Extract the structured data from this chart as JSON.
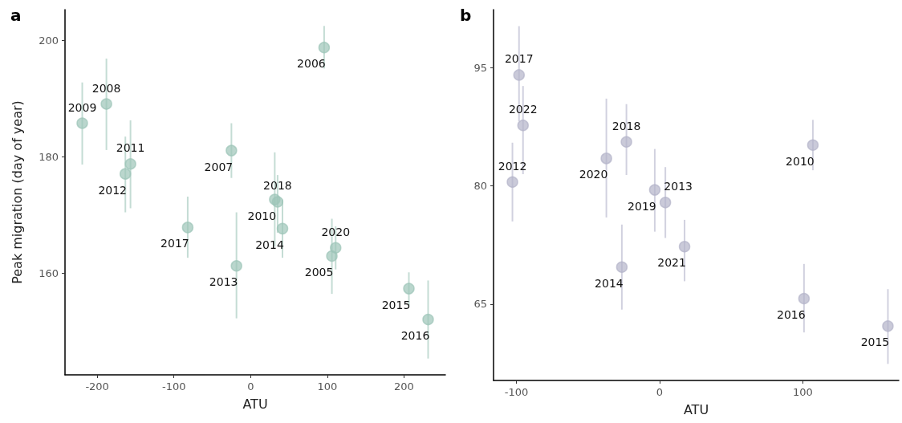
{
  "chart_data": [
    {
      "type": "scatter",
      "title": "a",
      "xlabel": "ATU",
      "ylabel": "Peak migration (day of year)",
      "xlim": [
        -242,
        254
      ],
      "ylim": [
        142.6,
        205.3
      ],
      "xticks": [
        -200,
        -100,
        0,
        100,
        200
      ],
      "yticks": [
        160,
        180,
        200
      ],
      "grid": false,
      "marker": "circle",
      "series": [
        {
          "color": "#9cc5b8",
          "x": [
            -219.5,
            -188,
            -156.6,
            -163.3,
            -82,
            -25,
            -18.4,
            31.5,
            35.2,
            41.6,
            95.9,
            106,
            110.9,
            206.4,
            231.5
          ],
          "values": [
            185.8,
            189.1,
            178.8,
            177.1,
            167.9,
            181.1,
            161.3,
            172.7,
            172.3,
            167.7,
            198.8,
            163.0,
            164.4,
            157.4,
            152.1
          ],
          "errors": [
            [
              178.7,
              192.8
            ],
            [
              181.2,
              196.9
            ],
            [
              171.2,
              186.3
            ],
            [
              170.5,
              183.5
            ],
            [
              162.7,
              173.2
            ],
            [
              176.4,
              185.8
            ],
            [
              152.3,
              170.5
            ],
            [
              164.6,
              180.8
            ],
            [
              167.0,
              176.9
            ],
            [
              162.7,
              172.7
            ],
            [
              195.2,
              202.5
            ],
            [
              156.5,
              169.4
            ],
            [
              160.7,
              168.1
            ],
            [
              154.5,
              160.2
            ],
            [
              145.4,
              158.8
            ]
          ]
        }
      ],
      "annotations": [
        {
          "text": "2009",
          "x": -219.5,
          "y": 185.8
        },
        {
          "text": "2008",
          "x": -188,
          "y": 189.1
        },
        {
          "text": "2011",
          "x": -156.6,
          "y": 178.8
        },
        {
          "text": "2012",
          "x": -163.3,
          "y": 177.1
        },
        {
          "text": "2017",
          "x": -82,
          "y": 167.9
        },
        {
          "text": "2007",
          "x": -25,
          "y": 181.1
        },
        {
          "text": "2013",
          "x": -18.4,
          "y": 161.3
        },
        {
          "text": "2010",
          "x": 31.5,
          "y": 172.7
        },
        {
          "text": "2018",
          "x": 35.2,
          "y": 172.3
        },
        {
          "text": "2014",
          "x": 41.6,
          "y": 167.7
        },
        {
          "text": "2006",
          "x": 95.9,
          "y": 198.8
        },
        {
          "text": "2005",
          "x": 106,
          "y": 163.0
        },
        {
          "text": "2020",
          "x": 110.9,
          "y": 164.4
        },
        {
          "text": "2015",
          "x": 206.4,
          "y": 157.4
        },
        {
          "text": "2016",
          "x": 231.5,
          "y": 152.1
        }
      ]
    },
    {
      "type": "scatter",
      "title": "b",
      "xlabel": "ATU",
      "xlim": [
        -116,
        167
      ],
      "ylim": [
        55.3,
        102.4
      ],
      "xticks": [
        -100,
        0,
        100
      ],
      "yticks": [
        65,
        80,
        95
      ],
      "grid": false,
      "marker": "circle",
      "series": [
        {
          "color": "#b3b3c9",
          "x": [
            -98.2,
            -95.4,
            -102.8,
            -37.2,
            -23.2,
            -3.4,
            4,
            17.4,
            -26.4,
            107,
            100.8,
            159.4
          ],
          "values": [
            94.1,
            87.7,
            80.5,
            83.5,
            85.6,
            79.5,
            77.9,
            72.3,
            69.7,
            85.2,
            65.7,
            62.2
          ],
          "errors": [
            [
              88.2,
              100.3
            ],
            [
              81.5,
              92.7
            ],
            [
              75.5,
              85.5
            ],
            [
              76.0,
              91.1
            ],
            [
              81.4,
              90.4
            ],
            [
              74.2,
              84.7
            ],
            [
              73.4,
              82.4
            ],
            [
              67.9,
              75.7
            ],
            [
              64.3,
              75.1
            ],
            [
              82.0,
              88.4
            ],
            [
              61.4,
              70.1
            ],
            [
              57.4,
              66.9
            ]
          ]
        }
      ],
      "annotations": [
        {
          "text": "2017",
          "x": -98.2,
          "y": 94.1
        },
        {
          "text": "2022",
          "x": -95.4,
          "y": 87.7
        },
        {
          "text": "2012",
          "x": -102.8,
          "y": 80.5
        },
        {
          "text": "2020",
          "x": -37.2,
          "y": 83.5
        },
        {
          "text": "2018",
          "x": -23.2,
          "y": 85.6
        },
        {
          "text": "2019",
          "x": -3.4,
          "y": 79.5
        },
        {
          "text": "2013",
          "x": 4,
          "y": 77.9
        },
        {
          "text": "2021",
          "x": 17.4,
          "y": 72.3
        },
        {
          "text": "2014",
          "x": -26.4,
          "y": 69.7
        },
        {
          "text": "2010",
          "x": 107,
          "y": 85.2
        },
        {
          "text": "2016",
          "x": 100.8,
          "y": 65.7
        },
        {
          "text": "2015",
          "x": 159.4,
          "y": 62.2
        }
      ]
    }
  ]
}
